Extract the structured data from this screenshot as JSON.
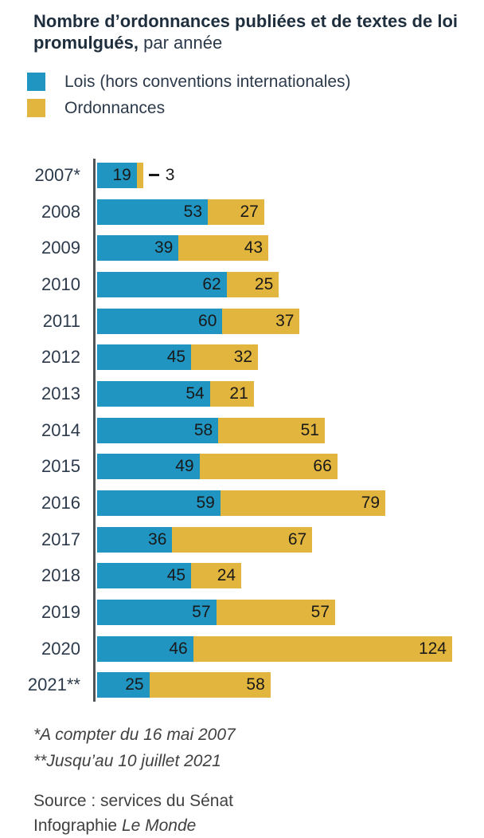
{
  "title": {
    "bold": "Nombre d’ordonnances publiées et de textes de loi promulgués,",
    "regular": "par année"
  },
  "legend": [
    {
      "label": "Lois (hors conventions internationales)",
      "color": "#2095c2"
    },
    {
      "label": "Ordonnances",
      "color": "#e2b63e"
    }
  ],
  "chart_data": {
    "type": "bar",
    "orientation": "horizontal",
    "stacked": true,
    "categories": [
      "2007*",
      "2008",
      "2009",
      "2010",
      "2011",
      "2012",
      "2013",
      "2014",
      "2015",
      "2016",
      "2017",
      "2018",
      "2019",
      "2020",
      "2021**"
    ],
    "series": [
      {
        "name": "Lois (hors conventions internationales)",
        "color": "#2095c2",
        "values": [
          19,
          53,
          39,
          62,
          60,
          45,
          54,
          58,
          49,
          59,
          36,
          45,
          57,
          46,
          25
        ]
      },
      {
        "name": "Ordonnances",
        "color": "#e2b63e",
        "values": [
          3,
          27,
          43,
          25,
          37,
          32,
          21,
          51,
          66,
          79,
          67,
          24,
          57,
          124,
          58
        ]
      }
    ],
    "xlim": [
      0,
      170
    ],
    "value_labels": "inside-right",
    "axis_color": "#515457",
    "grid": false,
    "legend_position": "top-left"
  },
  "footnotes": [
    "*A compter du 16 mai 2007",
    "**Jusqu’au 10 juillet 2021"
  ],
  "source": {
    "line1": "Source : services du Sénat",
    "line2_prefix": "Infographie",
    "line2_brand": "Le Monde"
  }
}
